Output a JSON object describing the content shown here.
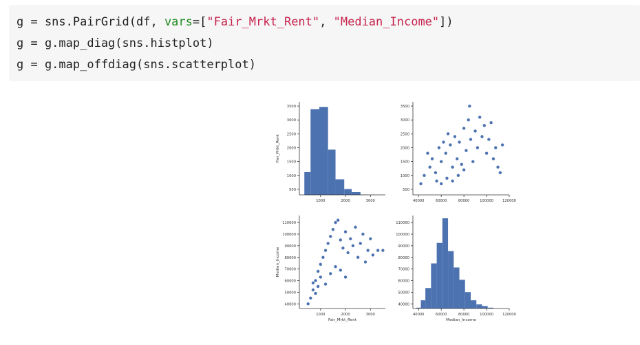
{
  "code": {
    "lines": [
      {
        "parts": [
          {
            "t": "g = sns.PairGrid(df, ",
            "c": "plain"
          },
          {
            "t": "vars",
            "c": "kw"
          },
          {
            "t": "=[",
            "c": "plain"
          },
          {
            "t": "\"Fair_Mrkt_Rent\"",
            "c": "str"
          },
          {
            "t": ", ",
            "c": "plain"
          },
          {
            "t": "\"Median_Income\"",
            "c": "str"
          },
          {
            "t": "])",
            "c": "plain"
          }
        ]
      },
      {
        "parts": [
          {
            "t": "g = g.map_diag(sns.histplot)",
            "c": "plain"
          }
        ]
      },
      {
        "parts": [
          {
            "t": "g = g.map_offdiag(sns.scatterplot)",
            "c": "plain"
          }
        ]
      }
    ]
  },
  "colors": {
    "mark": "#4c72b0",
    "axis": "#333333",
    "code_kw": "#1f8a1f",
    "code_str": "#c7254e"
  },
  "chart_data": [
    {
      "type": "bar",
      "panel": "hist-fair-mrkt-rent",
      "ylabel": "Fair_Mrkt_Rent",
      "xlabel": "",
      "xlim": [
        150,
        3600
      ],
      "ylim": [
        300,
        3650
      ],
      "xticks": [
        1000,
        2000,
        3000
      ],
      "yticks": [
        500,
        1000,
        1500,
        2000,
        2500,
        3000,
        3500
      ],
      "bins": [
        {
          "x0": 350,
          "x1": 600,
          "count": 1120
        },
        {
          "x0": 600,
          "x1": 950,
          "count": 3390
        },
        {
          "x0": 950,
          "x1": 1300,
          "count": 3470
        },
        {
          "x0": 1300,
          "x1": 1600,
          "count": 1930
        },
        {
          "x0": 1600,
          "x1": 1950,
          "count": 860
        },
        {
          "x0": 1950,
          "x1": 2250,
          "count": 510
        },
        {
          "x0": 2250,
          "x1": 2600,
          "count": 400
        },
        {
          "x0": 2600,
          "x1": 2900,
          "count": 310
        },
        {
          "x0": 2900,
          "x1": 3300,
          "count": 305
        }
      ]
    },
    {
      "type": "scatter",
      "panel": "scatter-income-vs-rent",
      "xlabel": "",
      "ylabel": "",
      "xlim": [
        35000,
        120000
      ],
      "ylim": [
        300,
        3650
      ],
      "xticks": [
        40000,
        60000,
        80000,
        100000,
        120000
      ],
      "yticks": [
        500,
        1000,
        1500,
        2000,
        2500,
        3000,
        3500
      ],
      "points": [
        [
          42000,
          700
        ],
        [
          45000,
          1000
        ],
        [
          48000,
          1800
        ],
        [
          50000,
          1300
        ],
        [
          52000,
          1600
        ],
        [
          55000,
          1100
        ],
        [
          58000,
          2000
        ],
        [
          60000,
          1500
        ],
        [
          62000,
          2200
        ],
        [
          64000,
          1800
        ],
        [
          66000,
          2500
        ],
        [
          68000,
          2100
        ],
        [
          70000,
          1300
        ],
        [
          72000,
          2400
        ],
        [
          74000,
          1600
        ],
        [
          76000,
          2200
        ],
        [
          78000,
          1400
        ],
        [
          80000,
          2700
        ],
        [
          82000,
          1900
        ],
        [
          84000,
          3000
        ],
        [
          85000,
          3500
        ],
        [
          86000,
          2300
        ],
        [
          88000,
          1500
        ],
        [
          90000,
          2600
        ],
        [
          92000,
          2000
        ],
        [
          94000,
          3100
        ],
        [
          96000,
          2400
        ],
        [
          98000,
          2800
        ],
        [
          100000,
          1800
        ],
        [
          102000,
          2300
        ],
        [
          104000,
          2900
        ],
        [
          106000,
          1600
        ],
        [
          108000,
          2000
        ],
        [
          110000,
          1300
        ],
        [
          112000,
          1100
        ],
        [
          114000,
          2100
        ],
        [
          60000,
          700
        ],
        [
          65000,
          900
        ],
        [
          70000,
          800
        ],
        [
          75000,
          1000
        ],
        [
          80000,
          1200
        ],
        [
          56000,
          800
        ]
      ]
    },
    {
      "type": "scatter",
      "panel": "scatter-rent-vs-income",
      "xlabel": "Fair_Mrkt_Rent",
      "ylabel": "Median_Income",
      "xlim": [
        150,
        3600
      ],
      "ylim": [
        36000,
        116000
      ],
      "xticks": [
        1000,
        2000,
        3000
      ],
      "yticks": [
        40000,
        50000,
        60000,
        70000,
        80000,
        90000,
        100000,
        110000
      ],
      "points": [
        [
          500,
          40000
        ],
        [
          600,
          45000
        ],
        [
          700,
          52000
        ],
        [
          800,
          60000
        ],
        [
          900,
          68000
        ],
        [
          1000,
          74000
        ],
        [
          1100,
          80000
        ],
        [
          1200,
          86000
        ],
        [
          1300,
          92000
        ],
        [
          1400,
          98000
        ],
        [
          1500,
          104000
        ],
        [
          1600,
          110000
        ],
        [
          1700,
          112000
        ],
        [
          1800,
          95000
        ],
        [
          1900,
          88000
        ],
        [
          2000,
          102000
        ],
        [
          2100,
          84000
        ],
        [
          2200,
          96000
        ],
        [
          2300,
          90000
        ],
        [
          2400,
          106000
        ],
        [
          2500,
          80000
        ],
        [
          2600,
          92000
        ],
        [
          2700,
          100000
        ],
        [
          2800,
          76000
        ],
        [
          2900,
          86000
        ],
        [
          3000,
          96000
        ],
        [
          3100,
          82000
        ],
        [
          3300,
          86000
        ],
        [
          3500,
          86000
        ],
        [
          700,
          58000
        ],
        [
          800,
          49000
        ],
        [
          900,
          55000
        ],
        [
          1000,
          63000
        ],
        [
          1200,
          57000
        ],
        [
          1400,
          66000
        ],
        [
          1600,
          72000
        ],
        [
          1800,
          69000
        ],
        [
          2000,
          63000
        ]
      ]
    },
    {
      "type": "bar",
      "panel": "hist-median-income",
      "xlabel": "Median_Income",
      "ylabel": "",
      "xlim": [
        35000,
        120000
      ],
      "ylim": [
        36000,
        116000
      ],
      "xticks": [
        40000,
        60000,
        80000,
        100000,
        120000
      ],
      "yticks": [
        40000,
        50000,
        60000,
        70000,
        80000,
        90000,
        100000,
        110000
      ],
      "bins": [
        {
          "x0": 38000,
          "x1": 42000,
          "count": 2
        },
        {
          "x0": 42000,
          "x1": 46000,
          "count": 20
        },
        {
          "x0": 46000,
          "x1": 51000,
          "count": 50
        },
        {
          "x0": 51000,
          "x1": 56000,
          "count": 110
        },
        {
          "x0": 56000,
          "x1": 61000,
          "count": 160
        },
        {
          "x0": 61000,
          "x1": 66000,
          "count": 220
        },
        {
          "x0": 66000,
          "x1": 71000,
          "count": 140
        },
        {
          "x0": 71000,
          "x1": 76000,
          "count": 100
        },
        {
          "x0": 76000,
          "x1": 81000,
          "count": 70
        },
        {
          "x0": 81000,
          "x1": 86000,
          "count": 40
        },
        {
          "x0": 86000,
          "x1": 91000,
          "count": 20
        },
        {
          "x0": 91000,
          "x1": 96000,
          "count": 10
        },
        {
          "x0": 96000,
          "x1": 101000,
          "count": 6
        },
        {
          "x0": 101000,
          "x1": 106000,
          "count": 2
        }
      ]
    }
  ]
}
